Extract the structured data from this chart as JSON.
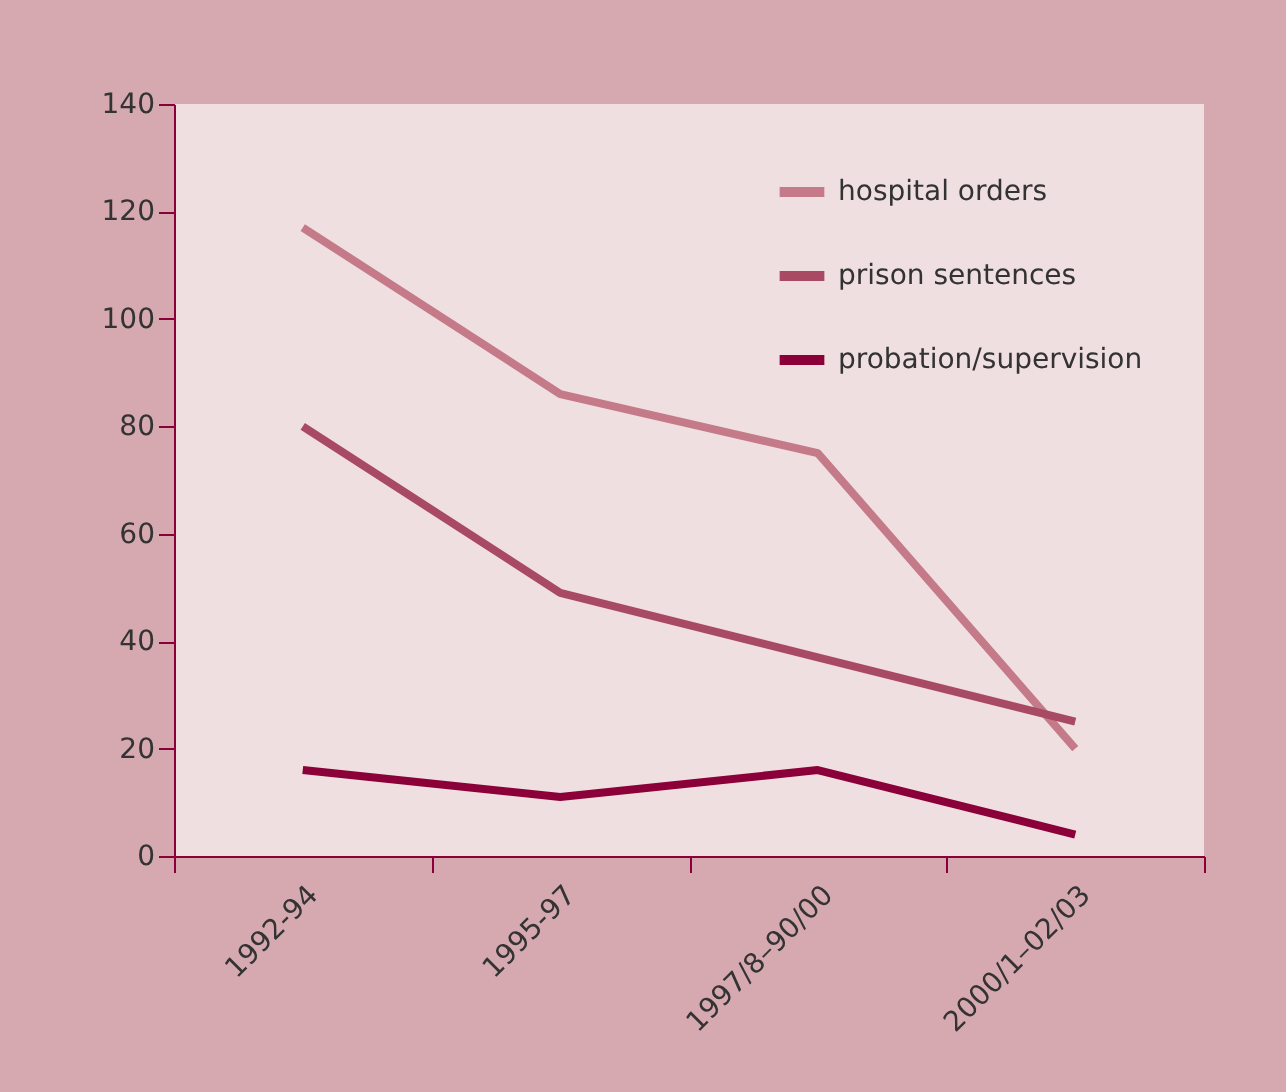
{
  "chart_data": {
    "type": "line",
    "categories": [
      "1992-94",
      "1995-97",
      "1997/8–90/00",
      "2000/1–02/03"
    ],
    "series": [
      {
        "name": "hospital orders",
        "color": "#c47a88",
        "values": [
          117,
          86,
          75,
          20
        ]
      },
      {
        "name": "prison sentences",
        "color": "#a94a64",
        "values": [
          80,
          49,
          37,
          25
        ]
      },
      {
        "name": "probation/supervision",
        "color": "#8b0039",
        "values": [
          16,
          11,
          16,
          4
        ]
      }
    ],
    "ylim": [
      0,
      140
    ],
    "yticks": [
      0,
      20,
      40,
      60,
      80,
      100,
      120,
      140
    ],
    "grid": false,
    "legend": "top right",
    "marker": "none",
    "line_style": "solid"
  }
}
